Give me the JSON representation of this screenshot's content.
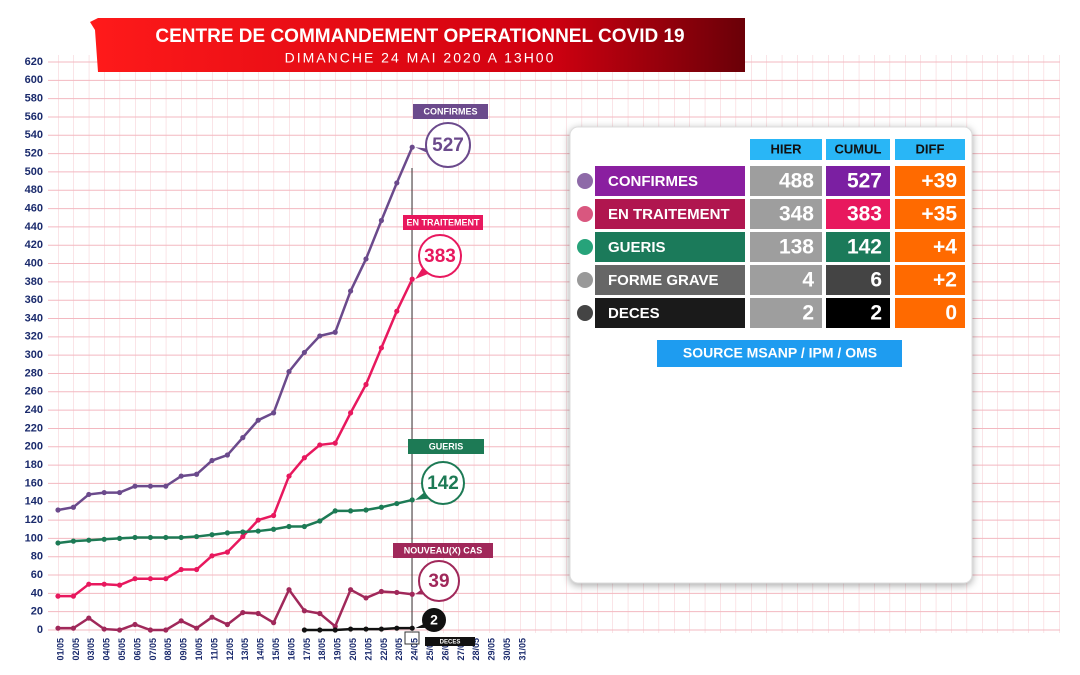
{
  "header": {
    "title": "CENTRE DE COMMANDEMENT OPERATIONNEL COVID 19",
    "subtitle": "DIMANCHE 24 MAI 2020 A 13H00"
  },
  "chart_data": {
    "type": "line",
    "categories": [
      "01/05",
      "02/05",
      "03/05",
      "04/05",
      "05/05",
      "06/05",
      "07/05",
      "08/05",
      "09/05",
      "10/05",
      "11/05",
      "12/05",
      "13/05",
      "14/05",
      "15/05",
      "16/05",
      "17/05",
      "18/05",
      "19/05",
      "20/05",
      "21/05",
      "22/05",
      "23/05",
      "24/05",
      "25/05",
      "26/05",
      "27/05",
      "28/05",
      "29/05",
      "30/05",
      "31/05"
    ],
    "series": [
      {
        "name": "CONFIRMES",
        "color": "#6b4a8c",
        "values": [
          131,
          134,
          148,
          150,
          150,
          157,
          157,
          157,
          168,
          170,
          185,
          191,
          210,
          229,
          237,
          282,
          303,
          321,
          325,
          370,
          405,
          447,
          488,
          527,
          null,
          null,
          null,
          null,
          null,
          null,
          null
        ]
      },
      {
        "name": "EN TRAITEMENT",
        "color": "#e8185e",
        "values": [
          37,
          37,
          50,
          50,
          49,
          56,
          56,
          56,
          66,
          66,
          81,
          85,
          102,
          120,
          125,
          168,
          188,
          202,
          204,
          237,
          268,
          308,
          348,
          383,
          null,
          null,
          null,
          null,
          null,
          null,
          null
        ]
      },
      {
        "name": "GUERIS",
        "color": "#1d7a55",
        "values": [
          95,
          97,
          98,
          99,
          100,
          101,
          101,
          101,
          101,
          102,
          104,
          106,
          107,
          108,
          110,
          113,
          113,
          119,
          130,
          130,
          131,
          134,
          138,
          142,
          null,
          null,
          null,
          null,
          null,
          null,
          null
        ]
      },
      {
        "name": "NOUVEAU(X) CAS",
        "color": "#a0285a",
        "values": [
          2,
          2,
          13,
          1,
          0,
          6,
          0,
          0,
          10,
          2,
          14,
          6,
          19,
          18,
          8,
          44,
          21,
          18,
          4,
          44,
          35,
          42,
          41,
          39,
          null,
          null,
          null,
          null,
          null,
          null,
          null
        ]
      },
      {
        "name": "DECES",
        "color": "#111111",
        "values": [
          null,
          null,
          null,
          null,
          null,
          null,
          null,
          null,
          null,
          null,
          null,
          null,
          null,
          null,
          null,
          null,
          0,
          0,
          0,
          1,
          1,
          1,
          2,
          2,
          null,
          null,
          null,
          null,
          null,
          null,
          null
        ]
      }
    ],
    "ylim": [
      0,
      620
    ],
    "yticks": [
      0,
      20,
      40,
      60,
      80,
      100,
      120,
      140,
      160,
      180,
      200,
      220,
      240,
      260,
      280,
      300,
      320,
      340,
      360,
      380,
      400,
      420,
      440,
      460,
      480,
      500,
      520,
      540,
      560,
      580,
      600,
      620
    ],
    "grid": true
  },
  "table": {
    "columns": [
      "HIER",
      "CUMUL",
      "DIFF"
    ],
    "rows": [
      [
        "CONFIRMES",
        "488",
        "527",
        "+39"
      ],
      [
        "EN TRAITEMENT",
        "348",
        "383",
        "+35"
      ],
      [
        "GUERIS",
        "138",
        "142",
        "+4"
      ],
      [
        "FORME GRAVE",
        "4",
        "6",
        "+2"
      ],
      [
        "DECES",
        "2",
        "2",
        "0"
      ]
    ],
    "source": "SOURCE MSANP / IPM / OMS"
  }
}
